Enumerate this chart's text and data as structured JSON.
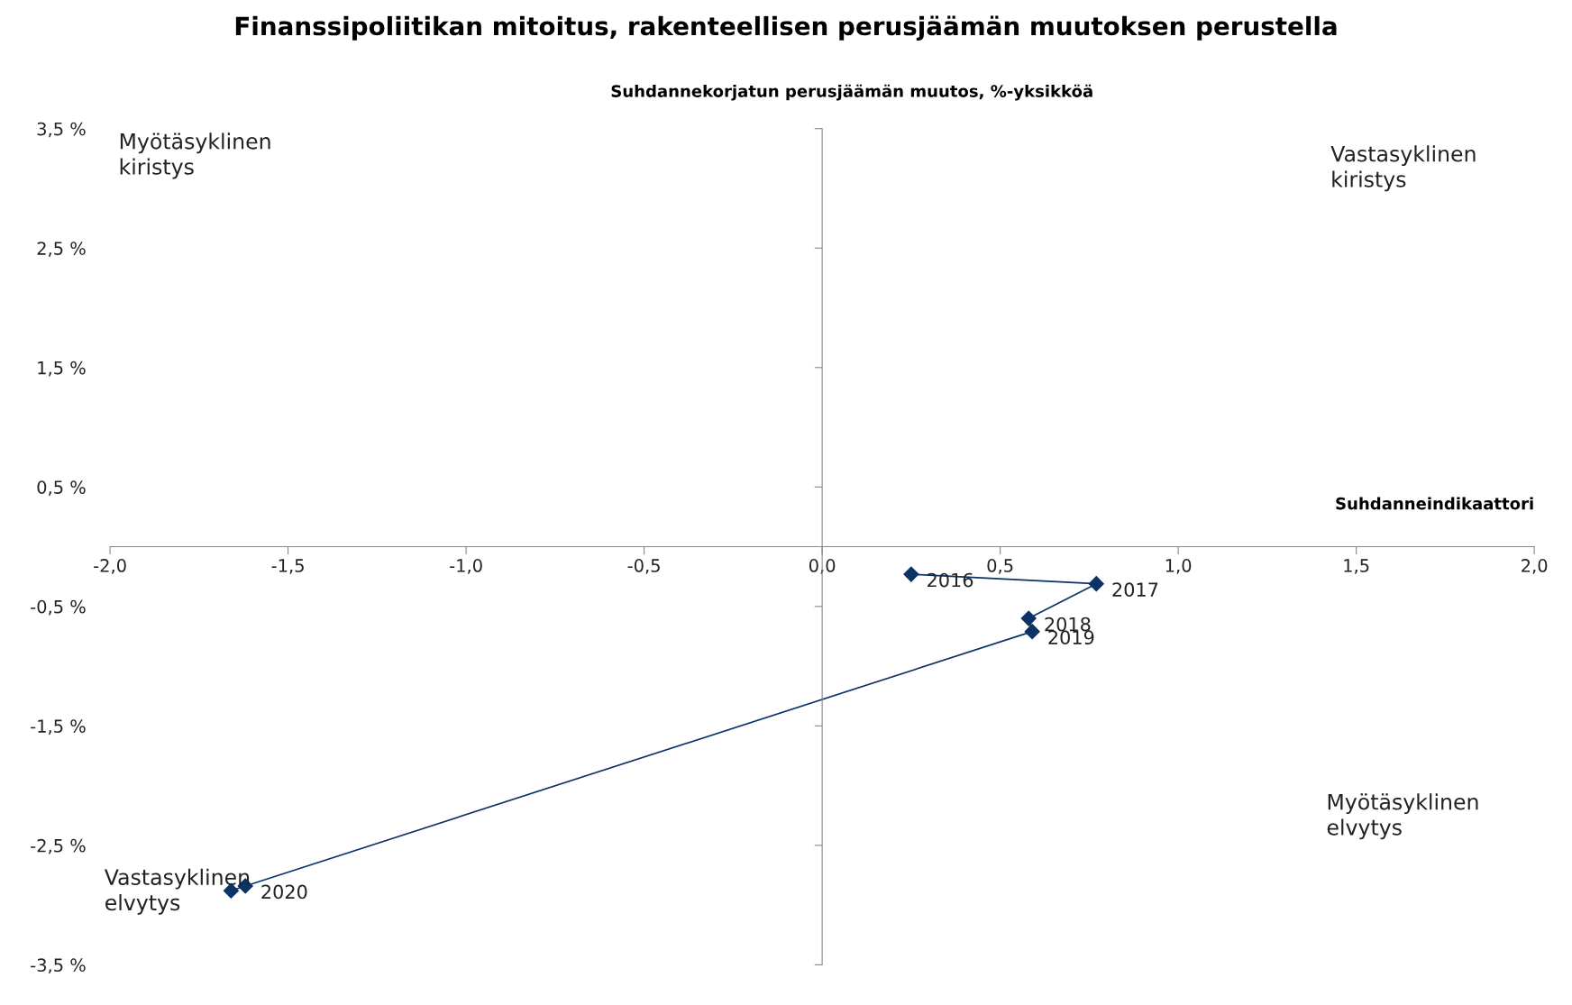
{
  "chart_data": {
    "type": "line",
    "title": "Finanssipoliitikan mitoitus, rakenteellisen perusjäämän muutoksen perustella",
    "xlabel": "Suhdanneindikaattori",
    "ylabel": "Suhdannekorjatun perusjäämän muutos, %-yksikköä",
    "x": [
      0.25,
      0.77,
      0.58,
      0.59,
      -1.62,
      -1.66
    ],
    "series": [
      {
        "color": "#0b3366",
        "values": [
          -0.23,
          -0.31,
          -0.6,
          -0.71,
          -2.84,
          -2.88
        ]
      }
    ],
    "marker": "diamond",
    "legend": false,
    "xlim": [
      -2,
      2
    ],
    "xticks": [
      {
        "value": -2,
        "label": "-2,0"
      },
      {
        "value": -1.5,
        "label": "-1,5"
      },
      {
        "value": -1,
        "label": "-1,0"
      },
      {
        "value": -0.5,
        "label": "-0,5"
      },
      {
        "value": 0,
        "label": "0,0"
      },
      {
        "value": 0.5,
        "label": "0,5"
      },
      {
        "value": 1,
        "label": "1,0"
      },
      {
        "value": 1.5,
        "label": "1,5"
      },
      {
        "value": 2,
        "label": "2,0"
      }
    ],
    "ylim": [
      -3.5,
      3.5
    ],
    "yticks": [
      {
        "value": 3.5,
        "label": "3,5 %"
      },
      {
        "value": 2.5,
        "label": "2,5 %"
      },
      {
        "value": 1.5,
        "label": "1,5 %"
      },
      {
        "value": 0.5,
        "label": "0,5 %"
      },
      {
        "value": -0.5,
        "label": "-0,5 %"
      },
      {
        "value": -1.5,
        "label": "-1,5 %"
      },
      {
        "value": -2.5,
        "label": "-2,5 %"
      },
      {
        "value": -3.5,
        "label": "-3,5 %"
      }
    ],
    "annotations": [
      {
        "text": "2016",
        "x": 0.25,
        "y": -0.23
      },
      {
        "text": "2017",
        "x": 0.77,
        "y": -0.31
      },
      {
        "text": "2018",
        "x": 0.58,
        "y": -0.6
      },
      {
        "text": "2019",
        "x": 0.59,
        "y": -0.71
      },
      {
        "text": "2020",
        "x": -1.62,
        "y": -2.84
      },
      "Myötäsyklinen\nkiristys",
      "Vastasyklinen\nkiristys",
      "Myötäsyklinen\nelvytys",
      "Vastasyklinen\nelvytys"
    ]
  }
}
